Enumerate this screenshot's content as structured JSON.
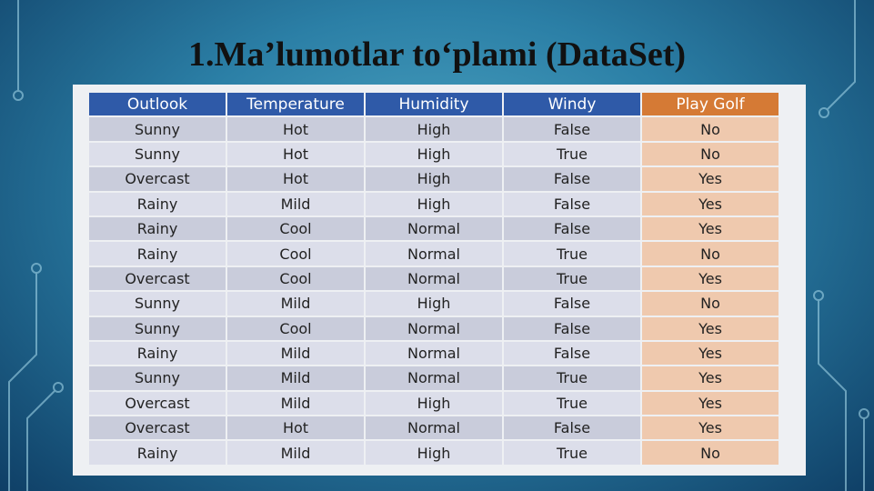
{
  "header": {
    "title": "1.Ma’lumotlar to‘plami (DataSet)"
  },
  "table": {
    "columns": [
      "Outlook",
      "Temperature",
      "Humidity",
      "Windy",
      "Play Golf"
    ],
    "rows": [
      [
        "Sunny",
        "Hot",
        "High",
        "False",
        "No"
      ],
      [
        "Sunny",
        "Hot",
        "High",
        "True",
        "No"
      ],
      [
        "Overcast",
        "Hot",
        "High",
        "False",
        "Yes"
      ],
      [
        "Rainy",
        "Mild",
        "High",
        "False",
        "Yes"
      ],
      [
        "Rainy",
        "Cool",
        "Normal",
        "False",
        "Yes"
      ],
      [
        "Rainy",
        "Cool",
        "Normal",
        "True",
        "No"
      ],
      [
        "Overcast",
        "Cool",
        "Normal",
        "True",
        "Yes"
      ],
      [
        "Sunny",
        "Mild",
        "High",
        "False",
        "No"
      ],
      [
        "Sunny",
        "Cool",
        "Normal",
        "False",
        "Yes"
      ],
      [
        "Rainy",
        "Mild",
        "Normal",
        "False",
        "Yes"
      ],
      [
        "Sunny",
        "Mild",
        "Normal",
        "True",
        "Yes"
      ],
      [
        "Overcast",
        "Mild",
        "High",
        "True",
        "Yes"
      ],
      [
        "Overcast",
        "Hot",
        "Normal",
        "False",
        "Yes"
      ],
      [
        "Rainy",
        "Mild",
        "High",
        "True",
        "No"
      ]
    ]
  }
}
